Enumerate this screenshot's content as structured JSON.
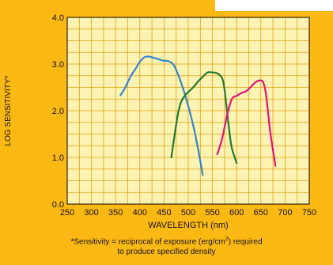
{
  "colors": {
    "panel": "#FDB913",
    "plot_bg": "#FEF3B3",
    "grid": "#E2A20C",
    "blue": "#2F86CE",
    "green": "#1E7A34",
    "magenta": "#E3127A"
  },
  "chart_data": {
    "type": "line",
    "xlabel": "WAVELENGTH (nm)",
    "ylabel": "LOG SENSITIVITY*",
    "xlim": [
      250,
      750
    ],
    "ylim": [
      0.0,
      4.0
    ],
    "x_ticks": [
      "250",
      "300",
      "350",
      "400",
      "450",
      "500",
      "550",
      "600",
      "650",
      "700",
      "750"
    ],
    "y_ticks": [
      "0.0",
      "1.0",
      "2.0",
      "3.0",
      "4.0"
    ],
    "grid": true,
    "series": [
      {
        "color": "#2F86CE",
        "x": [
          360,
          370,
          380,
          390,
          400,
          410,
          420,
          430,
          440,
          450,
          460,
          470,
          480,
          490,
          500,
          510,
          520,
          530
        ],
        "y": [
          2.33,
          2.5,
          2.72,
          2.88,
          3.05,
          3.15,
          3.16,
          3.13,
          3.1,
          3.07,
          3.06,
          2.98,
          2.75,
          2.45,
          2.1,
          1.7,
          1.2,
          0.62
        ]
      },
      {
        "color": "#1E7A34",
        "x": [
          465,
          470,
          475,
          480,
          485,
          490,
          495,
          500,
          510,
          520,
          530,
          540,
          550,
          560,
          570,
          575,
          580,
          585,
          590,
          600
        ],
        "y": [
          1.0,
          1.35,
          1.7,
          2.0,
          2.18,
          2.28,
          2.35,
          2.4,
          2.5,
          2.62,
          2.73,
          2.82,
          2.82,
          2.8,
          2.7,
          2.45,
          2.0,
          1.55,
          1.2,
          0.88
        ]
      },
      {
        "color": "#E3127A",
        "x": [
          560,
          570,
          580,
          590,
          600,
          610,
          620,
          630,
          640,
          650,
          655,
          660,
          665,
          670,
          680
        ],
        "y": [
          1.07,
          1.4,
          1.9,
          2.25,
          2.32,
          2.38,
          2.42,
          2.52,
          2.62,
          2.65,
          2.6,
          2.4,
          1.95,
          1.5,
          0.82
        ]
      }
    ]
  },
  "footnote": {
    "prefix": "*Sensitivity = reciprocal of exposure (erg/cm",
    "sup": "2",
    "suffix": ") required",
    "line2": "to produce specified density"
  }
}
